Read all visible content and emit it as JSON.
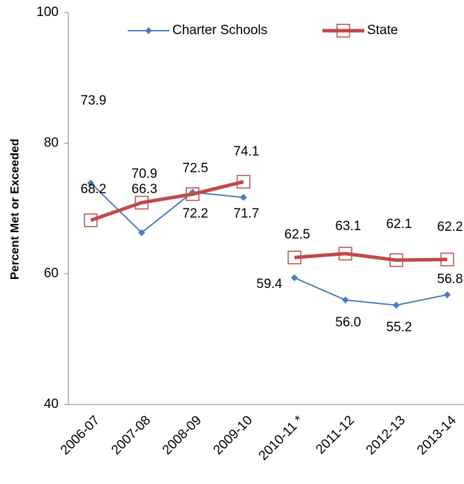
{
  "chart_data": {
    "type": "line",
    "y_label": "Percent Met or Exceeded",
    "categories": [
      "2006-07",
      "2007-08",
      "2008-09",
      "2009-10",
      "2010-11 *",
      "2011-12",
      "2012-13",
      "2013-14"
    ],
    "gap_after": 3,
    "series": [
      {
        "name": "Charter Schools",
        "color": "#4a7ebb",
        "marker": "diamond",
        "values": [
          73.9,
          66.3,
          72.5,
          71.7,
          59.4,
          56.0,
          55.2,
          56.8
        ],
        "value_labels": [
          "73.9",
          "66.3",
          "72.5",
          "71.7",
          "59.4",
          "56.0",
          "55.2",
          "56.8"
        ]
      },
      {
        "name": "State",
        "color": "#be4b48",
        "marker": "square",
        "values": [
          68.2,
          70.9,
          72.2,
          74.1,
          62.5,
          63.1,
          62.1,
          62.2
        ],
        "value_labels": [
          "68.2",
          "70.9",
          "72.2",
          "74.1",
          "62.5",
          "63.1",
          "62.1",
          "62.2"
        ]
      }
    ],
    "ylim": [
      40,
      100
    ],
    "yticks": [
      40,
      60,
      80,
      100
    ],
    "grid": false,
    "legend": "top"
  }
}
